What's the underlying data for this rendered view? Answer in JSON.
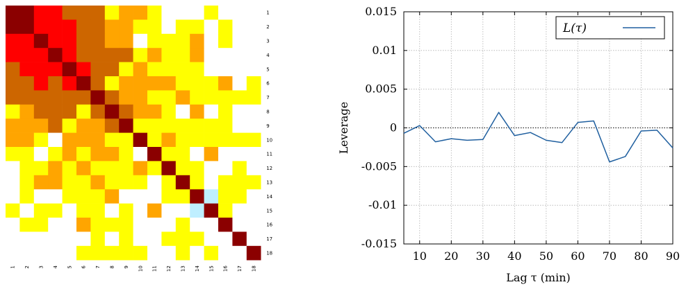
{
  "chart_data": [
    {
      "type": "heatmap",
      "row_labels": [
        "1",
        "2",
        "3",
        "4",
        "5",
        "6",
        "7",
        "8",
        "9",
        "10",
        "11",
        "12",
        "13",
        "14",
        "15",
        "16",
        "17",
        "18"
      ],
      "col_labels": [
        "1",
        "2",
        "3",
        "4",
        "5",
        "6",
        "7",
        "8",
        "9",
        "10",
        "11",
        "12",
        "13",
        "14",
        "15",
        "16",
        "17",
        "18"
      ],
      "levels": {
        "0": "#ffffff",
        "1": "#ffff00",
        "2": "#ffa500",
        "3": "#cd6600",
        "4": "#ff0000",
        "5": "#8b0000",
        "6": "#bfefff"
      },
      "matrix": [
        [
          5,
          5,
          4,
          4,
          3,
          3,
          3,
          1,
          2,
          2,
          1,
          0,
          0,
          0,
          1,
          0,
          0,
          0
        ],
        [
          5,
          5,
          4,
          4,
          4,
          3,
          3,
          2,
          2,
          1,
          1,
          0,
          1,
          1,
          0,
          1,
          0,
          0
        ],
        [
          4,
          4,
          5,
          4,
          4,
          3,
          3,
          2,
          2,
          0,
          1,
          1,
          1,
          2,
          0,
          1,
          0,
          0
        ],
        [
          4,
          4,
          4,
          5,
          4,
          3,
          3,
          3,
          3,
          1,
          2,
          1,
          1,
          2,
          0,
          0,
          0,
          0
        ],
        [
          3,
          4,
          4,
          4,
          5,
          4,
          3,
          3,
          1,
          2,
          1,
          1,
          1,
          1,
          0,
          0,
          0,
          0
        ],
        [
          3,
          3,
          4,
          3,
          4,
          5,
          3,
          1,
          2,
          2,
          2,
          2,
          1,
          1,
          1,
          2,
          0,
          1
        ],
        [
          3,
          3,
          3,
          3,
          3,
          3,
          5,
          3,
          2,
          2,
          1,
          1,
          2,
          1,
          1,
          1,
          1,
          1
        ],
        [
          1,
          2,
          3,
          3,
          3,
          1,
          3,
          5,
          3,
          2,
          2,
          1,
          0,
          2,
          0,
          1,
          0,
          0
        ],
        [
          2,
          2,
          2,
          3,
          1,
          2,
          2,
          3,
          5,
          1,
          1,
          1,
          1,
          1,
          1,
          1,
          0,
          0
        ],
        [
          2,
          2,
          1,
          0,
          2,
          2,
          2,
          1,
          1,
          5,
          1,
          2,
          1,
          1,
          1,
          1,
          1,
          1
        ],
        [
          1,
          1,
          0,
          1,
          2,
          1,
          2,
          2,
          1,
          0,
          5,
          1,
          1,
          0,
          2,
          0,
          0,
          0
        ],
        [
          0,
          1,
          1,
          2,
          1,
          2,
          1,
          1,
          1,
          2,
          1,
          5,
          1,
          1,
          0,
          0,
          1,
          0
        ],
        [
          0,
          1,
          2,
          2,
          1,
          1,
          2,
          1,
          1,
          1,
          0,
          1,
          5,
          1,
          0,
          1,
          1,
          1
        ],
        [
          0,
          1,
          0,
          0,
          1,
          1,
          1,
          2,
          0,
          0,
          0,
          1,
          1,
          5,
          6,
          1,
          1,
          0
        ],
        [
          1,
          0,
          1,
          1,
          0,
          1,
          1,
          0,
          1,
          0,
          2,
          0,
          0,
          6,
          5,
          1,
          0,
          0
        ],
        [
          0,
          1,
          1,
          0,
          0,
          2,
          1,
          1,
          1,
          0,
          0,
          0,
          1,
          0,
          0,
          5,
          0,
          0
        ],
        [
          0,
          0,
          0,
          0,
          0,
          0,
          1,
          0,
          1,
          0,
          0,
          1,
          1,
          1,
          0,
          0,
          5,
          0
        ],
        [
          0,
          0,
          0,
          0,
          0,
          1,
          1,
          1,
          1,
          1,
          0,
          0,
          1,
          0,
          1,
          0,
          0,
          5
        ]
      ]
    },
    {
      "type": "line",
      "x": [
        5,
        10,
        15,
        20,
        25,
        30,
        35,
        40,
        45,
        50,
        55,
        60,
        65,
        70,
        75,
        80,
        85,
        90
      ],
      "series": [
        {
          "name": "L(τ)",
          "color": "#1f5f9f",
          "values": [
            -0.0007,
            0.0003,
            -0.0018,
            -0.0014,
            -0.0016,
            -0.0015,
            0.002,
            -0.001,
            -0.0006,
            -0.0016,
            -0.0019,
            0.0007,
            0.0009,
            -0.0044,
            -0.0037,
            -0.0004,
            -0.0003,
            -0.0026
          ]
        }
      ],
      "xlabel": "Lag τ (min)",
      "ylabel": "Leverage",
      "xlim": [
        5,
        90
      ],
      "ylim": [
        -0.015,
        0.015
      ],
      "x_ticks": [
        10,
        20,
        30,
        40,
        50,
        60,
        70,
        80,
        90
      ],
      "y_ticks": [
        -0.015,
        -0.01,
        -0.005,
        0,
        0.005,
        0.01,
        0.015
      ],
      "y_tick_labels": [
        "-0.015",
        "-0.01",
        "-0.005",
        "0",
        "0.005",
        "0.01",
        "0.015"
      ],
      "grid": true,
      "zero_line": true,
      "legend_position": "top-right"
    }
  ]
}
